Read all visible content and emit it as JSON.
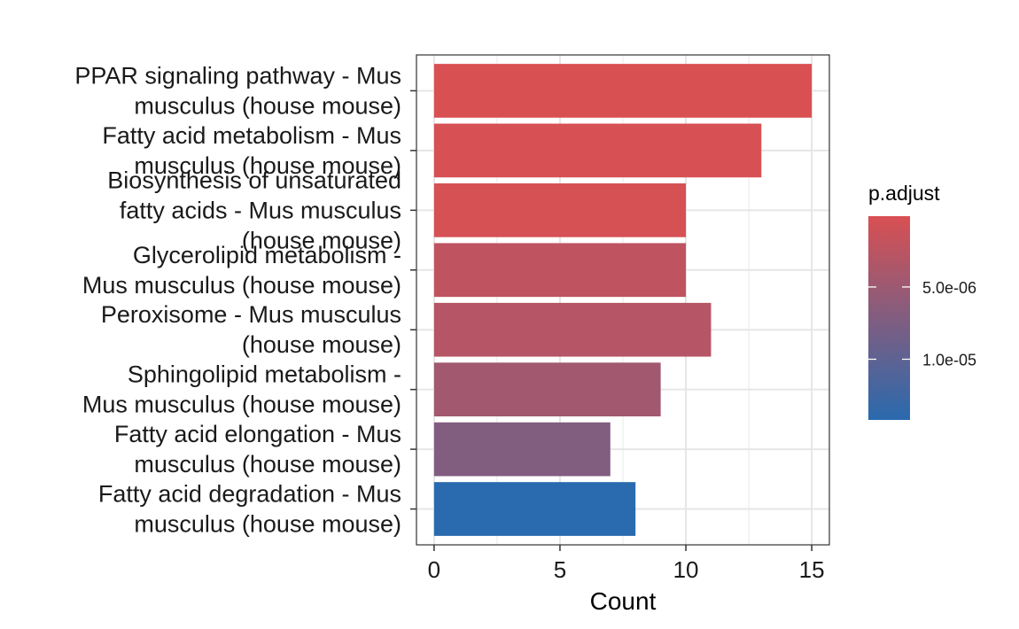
{
  "chart_data": {
    "type": "bar",
    "orientation": "horizontal",
    "categories": [
      [
        "PPAR signaling pathway - Mus",
        "musculus (house mouse)"
      ],
      [
        "Fatty acid metabolism - Mus",
        "musculus (house mouse)"
      ],
      [
        "Biosynthesis of unsaturated",
        "fatty acids - Mus musculus",
        "(house mouse)"
      ],
      [
        "Glycerolipid metabolism -",
        "Mus musculus (house mouse)"
      ],
      [
        "Peroxisome - Mus musculus",
        "(house mouse)"
      ],
      [
        "Sphingolipid metabolism -",
        "Mus musculus (house mouse)"
      ],
      [
        "Fatty acid elongation - Mus",
        "musculus (house mouse)"
      ],
      [
        "Fatty acid degradation - Mus",
        "musculus (house mouse)"
      ]
    ],
    "values": [
      15,
      13,
      10,
      10,
      11,
      9,
      7,
      8
    ],
    "p_adjust": [
      1e-07,
      3e-07,
      4e-07,
      2.2e-06,
      3e-06,
      4.5e-06,
      7.2e-06,
      1.42e-05
    ],
    "xlabel": "Count",
    "xlim": [
      -0.7,
      15.7
    ],
    "xticks": [
      0,
      5,
      10,
      15
    ],
    "grid": true,
    "legend": {
      "title": "p.adjust",
      "position": "right",
      "type": "colorbar",
      "range": [
        1e-07,
        1.42e-05
      ],
      "ticks": [
        {
          "value": 5e-06,
          "label": "5.0e-06"
        },
        {
          "value": 1e-05,
          "label": "1.0e-05"
        }
      ],
      "low_color": "#d95052",
      "high_color": "#2a6aae"
    }
  }
}
